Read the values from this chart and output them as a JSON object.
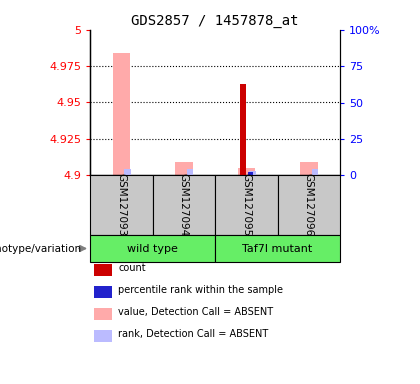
{
  "title": "GDS2857 / 1457878_at",
  "samples": [
    "GSM127093",
    "GSM127094",
    "GSM127095",
    "GSM127096"
  ],
  "ylim_left": [
    4.9,
    5.0
  ],
  "ylim_right": [
    0,
    100
  ],
  "yticks_left": [
    4.9,
    4.925,
    4.95,
    4.975,
    5.0
  ],
  "yticks_right": [
    0,
    25,
    50,
    75,
    100
  ],
  "ytick_labels_left": [
    "4.9",
    "4.925",
    "4.95",
    "4.975",
    "5"
  ],
  "ytick_labels_right": [
    "0",
    "25",
    "50",
    "75",
    "100%"
  ],
  "bar_base": 4.9,
  "bars": {
    "GSM127093": {
      "value_absent": 4.984,
      "rank_absent": 4.904,
      "count": null,
      "percentile": null
    },
    "GSM127094": {
      "value_absent": 4.909,
      "rank_absent": 4.904,
      "count": null,
      "percentile": null
    },
    "GSM127095": {
      "value_absent": 4.905,
      "rank_absent": 4.903,
      "count": 4.963,
      "percentile": 4.902
    },
    "GSM127096": {
      "value_absent": 4.909,
      "rank_absent": 4.904,
      "count": null,
      "percentile": null
    }
  },
  "group_ranges": [
    [
      0,
      1,
      "wild type"
    ],
    [
      2,
      3,
      "Taf7l mutant"
    ]
  ],
  "colors": {
    "count": "#cc0000",
    "percentile": "#2222cc",
    "value_absent": "#ffaaaa",
    "rank_absent": "#bbbbff",
    "group_box": "#c8c8c8",
    "group_label_bg": "#66ee66"
  },
  "legend": [
    {
      "color": "#cc0000",
      "label": "count"
    },
    {
      "color": "#2222cc",
      "label": "percentile rank within the sample"
    },
    {
      "color": "#ffaaaa",
      "label": "value, Detection Call = ABSENT"
    },
    {
      "color": "#bbbbff",
      "label": "rank, Detection Call = ABSENT"
    }
  ],
  "genotype_label": "genotype/variation"
}
